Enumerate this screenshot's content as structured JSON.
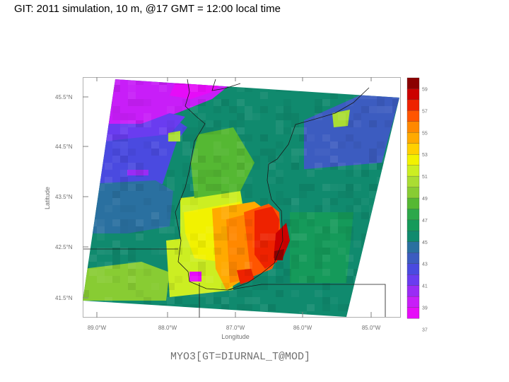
{
  "slide": {
    "title": "GIT: 2011 simulation, 10 m, @17 GMT = 12:00 local time"
  },
  "map": {
    "ylabel": "Latitude",
    "xlabel": "Longitude",
    "footer": "MYO3[GT=DIURNAL_T@MOD]",
    "lat_ticks": [
      "45.5°N",
      "44.5°N",
      "43.5°N",
      "42.5°N",
      "41.5°N"
    ],
    "lon_ticks": [
      "89.0°W",
      "88.0°W",
      "87.0°W",
      "86.0°W",
      "85.0°W"
    ]
  },
  "colorbar": {
    "labels": [
      "59",
      "57",
      "55",
      "53",
      "51",
      "49",
      "47",
      "45",
      "43",
      "41",
      "39",
      "37"
    ],
    "colors": [
      "#8b0000",
      "#cc0000",
      "#ee2200",
      "#ff5500",
      "#ff8800",
      "#ffaa00",
      "#ffd000",
      "#f2f200",
      "#ccee22",
      "#aadd33",
      "#88cc33",
      "#55b833",
      "#2da84a",
      "#159a5a",
      "#108a6e",
      "#2a70a0",
      "#3c5cc0",
      "#4a4ae0",
      "#6a3cf0",
      "#9a2cf5",
      "#c81ef8",
      "#e60cf8"
    ]
  }
}
